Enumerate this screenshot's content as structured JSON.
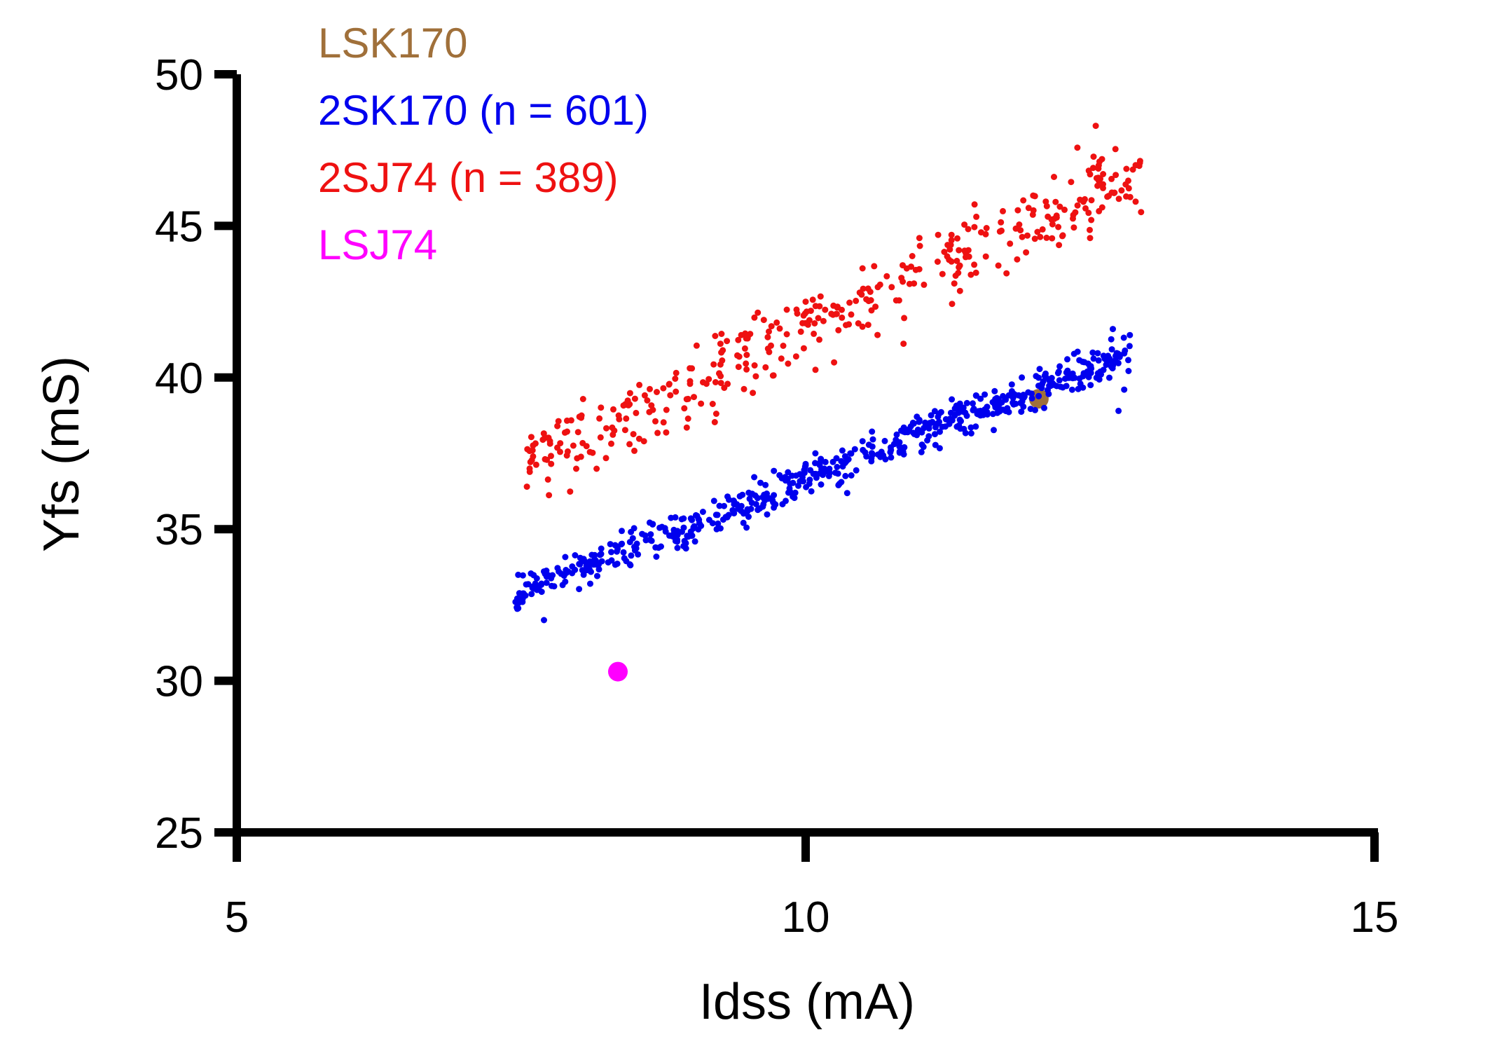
{
  "chart_data": {
    "type": "scatter",
    "title": "",
    "xlabel": "Idss (mA)",
    "ylabel": "Yfs (mS)",
    "xlim": [
      5,
      15
    ],
    "ylim": [
      25,
      50
    ],
    "xticks": [
      "5",
      "10",
      "15"
    ],
    "yticks": [
      "25",
      "30",
      "35",
      "40",
      "45",
      "50"
    ],
    "grid": false,
    "legend_position": "top-left",
    "series": [
      {
        "name": "LSK170",
        "color": "#a0703a",
        "marker": "large-dot",
        "points": [
          [
            12.05,
            39.3
          ]
        ]
      },
      {
        "name": "2SK170 (n = 601)",
        "color": "#0000ee",
        "marker": "small-dot",
        "n": 601,
        "trend": {
          "x_start": 7.45,
          "y_start": 32.9,
          "x_end": 12.85,
          "y_end": 40.8
        },
        "points": [
          [
            7.45,
            32.6
          ],
          [
            7.7,
            32.0
          ],
          [
            7.6,
            33.1
          ],
          [
            8.5,
            34.3
          ],
          [
            9.0,
            35.3
          ],
          [
            9.5,
            36.2
          ],
          [
            10.0,
            37.1
          ],
          [
            10.5,
            37.9
          ],
          [
            11.0,
            38.6
          ],
          [
            11.5,
            39.4
          ],
          [
            11.9,
            40.0
          ],
          [
            12.3,
            40.6
          ],
          [
            12.7,
            41.6
          ],
          [
            12.8,
            39.6
          ],
          [
            12.75,
            38.9
          ],
          [
            12.85,
            41.4
          ]
        ]
      },
      {
        "name": "2SJ74 (n = 389)",
        "color": "#ee1111",
        "marker": "small-dot",
        "n": 389,
        "trend": {
          "x_start": 7.55,
          "y_start": 37.2,
          "x_end": 12.95,
          "y_end": 46.9
        },
        "points": [
          [
            7.55,
            36.4
          ],
          [
            7.6,
            37.6
          ],
          [
            8.0,
            38.2
          ],
          [
            8.5,
            39.3
          ],
          [
            9.0,
            40.3
          ],
          [
            9.5,
            41.4
          ],
          [
            10.0,
            42.5
          ],
          [
            10.5,
            43.6
          ],
          [
            11.0,
            44.6
          ],
          [
            11.5,
            45.3
          ],
          [
            12.0,
            46.0
          ],
          [
            12.5,
            46.7
          ],
          [
            12.55,
            48.3
          ],
          [
            12.9,
            47.0
          ],
          [
            12.9,
            45.8
          ],
          [
            12.5,
            44.6
          ],
          [
            10.25,
            40.5
          ]
        ]
      },
      {
        "name": "LSJ74",
        "color": "#ff00ff",
        "marker": "large-dot",
        "points": [
          [
            8.35,
            30.3
          ]
        ]
      }
    ]
  }
}
